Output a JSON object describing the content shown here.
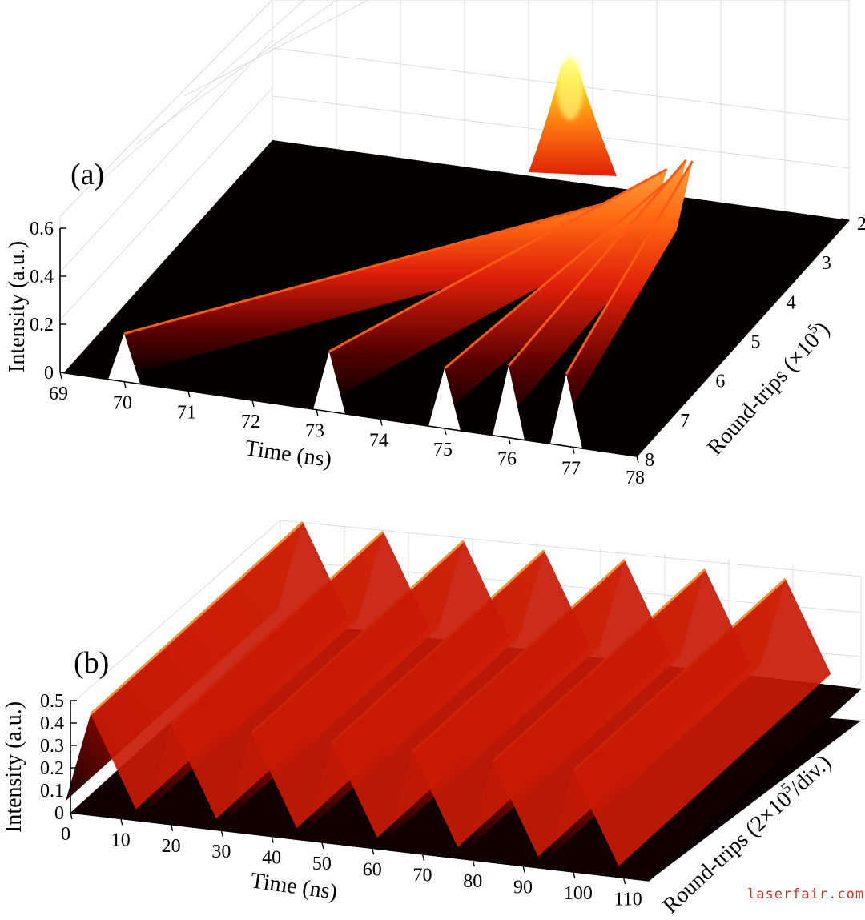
{
  "chart_data": [
    {
      "type": "surface",
      "panel_label": "(a)",
      "xlabel": "Time (ns)",
      "ylabel": "Round-trips (×10",
      "ylabel_exp": "5",
      "ylabel_close": ")",
      "zlabel": "Intensity (a.u.)",
      "x_ticks": [
        "69",
        "70",
        "71",
        "72",
        "73",
        "74",
        "75",
        "76",
        "77",
        "78"
      ],
      "y_ticks": [
        "2",
        "3",
        "4",
        "5",
        "6",
        "7",
        "8"
      ],
      "z_ticks": [
        "0",
        "0.2",
        "0.4",
        "0.6"
      ],
      "xlim": [
        69,
        78
      ],
      "ylim": [
        2,
        8
      ],
      "zlim": [
        0,
        0.6
      ],
      "colormap": "hot",
      "series": [
        {
          "start_time": 70.0,
          "end_time": 75.8,
          "amplitude": 0.2
        },
        {
          "start_time": 73.2,
          "end_time": 75.6,
          "amplitude": 0.25
        },
        {
          "start_time": 75.0,
          "end_time": 75.8,
          "amplitude": 0.25
        },
        {
          "start_time": 76.0,
          "end_time": 75.9,
          "amplitude": 0.3
        },
        {
          "start_time": 76.9,
          "end_time": 76.0,
          "amplitude": 0.3
        }
      ],
      "merged_peak": {
        "time": 75.9,
        "round_trips": 2.0,
        "intensity": 0.6
      }
    },
    {
      "type": "surface",
      "panel_label": "(b)",
      "xlabel": "Time (ns)",
      "ylabel": "Round-trips (2×10",
      "ylabel_exp": "5",
      "ylabel_close": "/div.)",
      "zlabel": "Intensity (a.u.)",
      "x_ticks": [
        "0",
        "10",
        "20",
        "30",
        "40",
        "50",
        "60",
        "70",
        "80",
        "90",
        "100",
        "110"
      ],
      "z_ticks": [
        "0",
        "0.1",
        "0.2",
        "0.3",
        "0.4",
        "0.5"
      ],
      "xlim": [
        0,
        115
      ],
      "zlim": [
        0,
        0.5
      ],
      "colormap": "hot",
      "pulse_times": [
        4,
        20,
        36,
        52,
        68,
        84,
        100
      ],
      "pulse_amplitude": 0.45,
      "background_level": 0.05
    }
  ],
  "watermark": "laserfair.com"
}
